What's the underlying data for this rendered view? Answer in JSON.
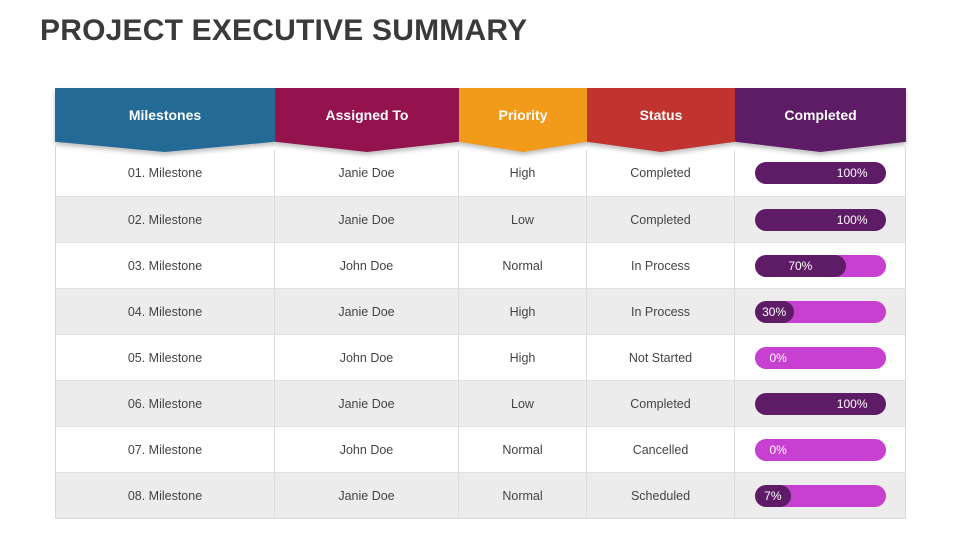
{
  "title": "PROJECT EXECUTIVE SUMMARY",
  "columns": [
    {
      "label": "Milestones",
      "color": "#236b96"
    },
    {
      "label": "Assigned To",
      "color": "#94134f"
    },
    {
      "label": "Priority",
      "color": "#f29a1a"
    },
    {
      "label": "Status",
      "color": "#c0332e"
    },
    {
      "label": "Completed",
      "color": "#5e1c67"
    }
  ],
  "progress_colors": {
    "filled": "#5e1c67",
    "remaining": "#c840cf"
  },
  "rows": [
    {
      "milestone": "01. Milestone",
      "assigned": "Janie Doe",
      "priority": "High",
      "status": "Completed",
      "completed_label": "100%",
      "completed_value": 100
    },
    {
      "milestone": "02. Milestone",
      "assigned": "Janie Doe",
      "priority": "Low",
      "status": "Completed",
      "completed_label": "100%",
      "completed_value": 100
    },
    {
      "milestone": "03. Milestone",
      "assigned": "John Doe",
      "priority": "Normal",
      "status": "In Process",
      "completed_label": "70%",
      "completed_value": 70
    },
    {
      "milestone": "04. Milestone",
      "assigned": "Janie Doe",
      "priority": "High",
      "status": "In Process",
      "completed_label": "30%",
      "completed_value": 30
    },
    {
      "milestone": "05. Milestone",
      "assigned": "John Doe",
      "priority": "High",
      "status": "Not Started",
      "completed_label": "0%",
      "completed_value": 0
    },
    {
      "milestone": "06. Milestone",
      "assigned": "Janie Doe",
      "priority": "Low",
      "status": "Completed",
      "completed_label": "100%",
      "completed_value": 100
    },
    {
      "milestone": "07. Milestone",
      "assigned": "John Doe",
      "priority": "Normal",
      "status": "Cancelled",
      "completed_label": "0%",
      "completed_value": 0
    },
    {
      "milestone": "08. Milestone",
      "assigned": "Janie Doe",
      "priority": "Normal",
      "status": "Scheduled",
      "completed_label": "7%",
      "completed_value": 7
    }
  ]
}
